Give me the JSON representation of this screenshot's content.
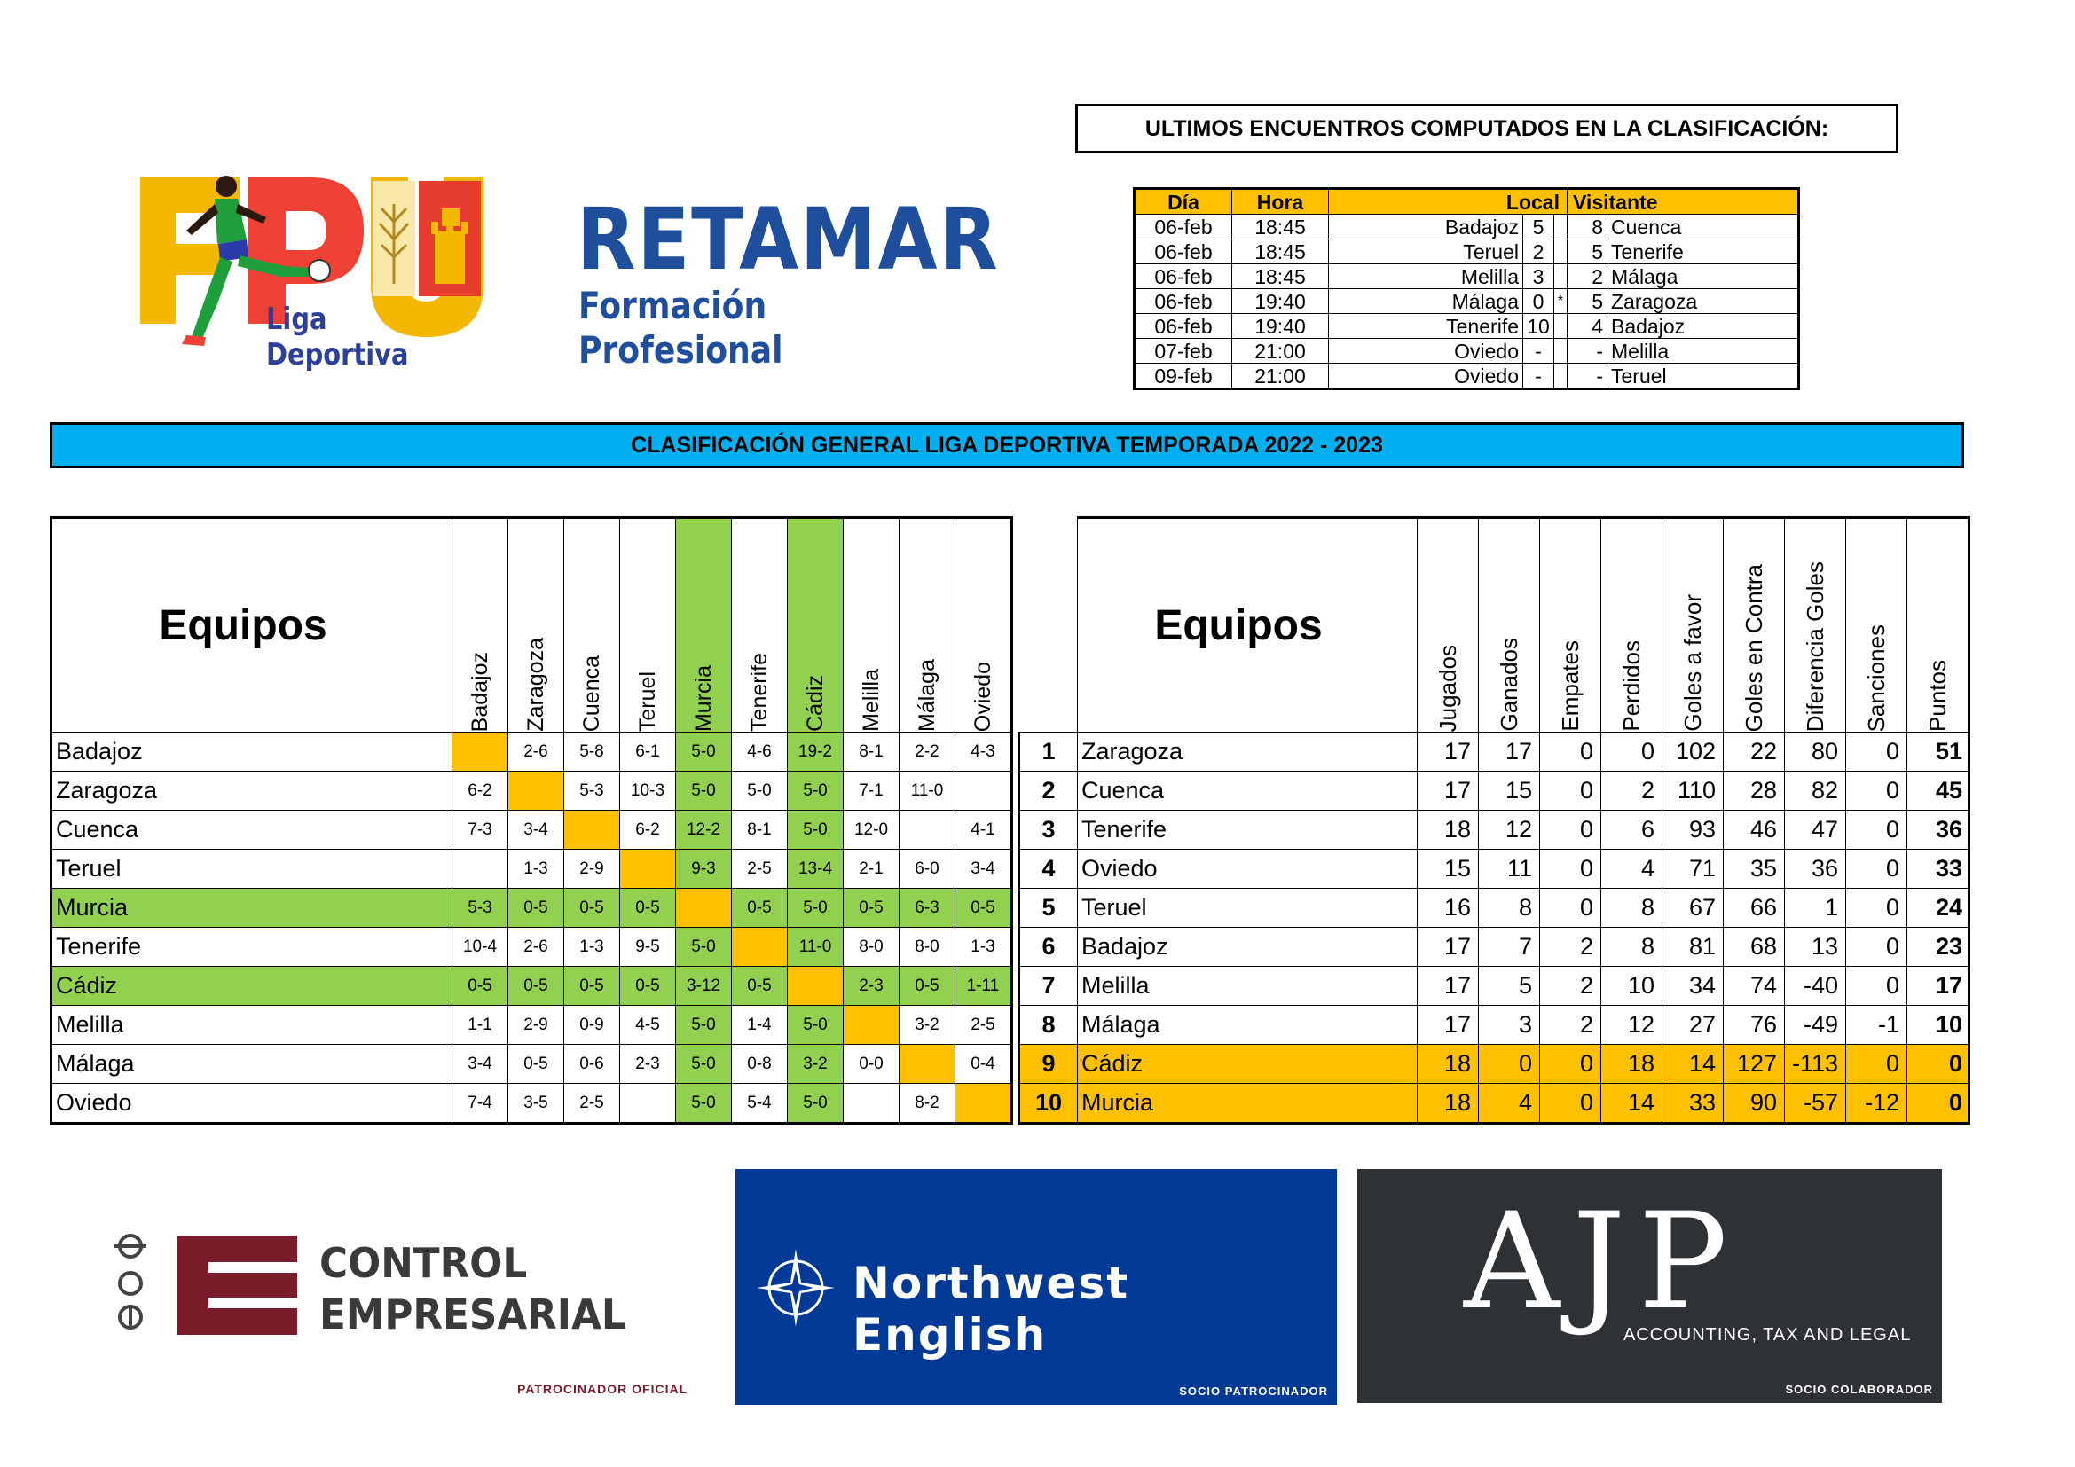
{
  "logos": {
    "fpu_letters": "FPU",
    "fpu_caption": "Liga Deportiva",
    "retamar_title": "RETAMAR",
    "retamar_subtitle": "Formación Profesional"
  },
  "ultimos": {
    "title": "ULTIMOS ENCUENTROS COMPUTADOS EN LA CLASIFICACIÓN:",
    "headers": {
      "dia": "Día",
      "hora": "Hora",
      "local": "Local",
      "visitante": "Visitante"
    },
    "rows": [
      {
        "dia": "06-feb",
        "hora": "18:45",
        "local": "Badajoz",
        "gl": "5",
        "mark": "",
        "gv": "8",
        "visitante": "Cuenca"
      },
      {
        "dia": "06-feb",
        "hora": "18:45",
        "local": "Teruel",
        "gl": "2",
        "mark": "",
        "gv": "5",
        "visitante": "Tenerife"
      },
      {
        "dia": "06-feb",
        "hora": "18:45",
        "local": "Melilla",
        "gl": "3",
        "mark": "",
        "gv": "2",
        "visitante": "Málaga"
      },
      {
        "dia": "06-feb",
        "hora": "19:40",
        "local": "Málaga",
        "gl": "0",
        "mark": "*",
        "gv": "5",
        "visitante": "Zaragoza"
      },
      {
        "dia": "06-feb",
        "hora": "19:40",
        "local": "Tenerife",
        "gl": "10",
        "mark": "",
        "gv": "4",
        "visitante": "Badajoz"
      },
      {
        "dia": "07-feb",
        "hora": "21:00",
        "local": "Oviedo",
        "gl": "-",
        "mark": "",
        "gv": "-",
        "visitante": "Melilla"
      },
      {
        "dia": "09-feb",
        "hora": "21:00",
        "local": "Oviedo",
        "gl": "-",
        "mark": "",
        "gv": "-",
        "visitante": "Teruel"
      }
    ]
  },
  "banner": "CLASIFICACIÓN GENERAL LIGA DEPORTIVA TEMPORADA 2022 - 2023",
  "matrix": {
    "header": "Equipos",
    "teams": [
      "Badajoz",
      "Zaragoza",
      "Cuenca",
      "Teruel",
      "Murcia",
      "Tenerife",
      "Cádiz",
      "Melilla",
      "Málaga",
      "Oviedo"
    ],
    "green_teams": [
      "Murcia",
      "Cádiz"
    ],
    "orange_color": "#ffc000",
    "green_color": "#92d050",
    "results": [
      [
        "",
        "2-6",
        "5-8",
        "6-1",
        "5-0",
        "4-6",
        "19-2",
        "8-1",
        "2-2",
        "4-3"
      ],
      [
        "6-2",
        "",
        "5-3",
        "10-3",
        "5-0",
        "5-0",
        "5-0",
        "7-1",
        "11-0",
        ""
      ],
      [
        "7-3",
        "3-4",
        "",
        "6-2",
        "12-2",
        "8-1",
        "5-0",
        "12-0",
        "",
        "4-1"
      ],
      [
        "",
        "1-3",
        "2-9",
        "",
        "9-3",
        "2-5",
        "13-4",
        "2-1",
        "6-0",
        "3-4"
      ],
      [
        "5-3",
        "0-5",
        "0-5",
        "0-5",
        "",
        "0-5",
        "5-0",
        "0-5",
        "6-3",
        "0-5"
      ],
      [
        "10-4",
        "2-6",
        "1-3",
        "9-5",
        "5-0",
        "",
        "11-0",
        "8-0",
        "8-0",
        "1-3"
      ],
      [
        "0-5",
        "0-5",
        "0-5",
        "0-5",
        "3-12",
        "0-5",
        "",
        "2-3",
        "0-5",
        "1-11"
      ],
      [
        "1-1",
        "2-9",
        "0-9",
        "4-5",
        "5-0",
        "1-4",
        "5-0",
        "",
        "3-2",
        "2-5"
      ],
      [
        "3-4",
        "0-5",
        "0-6",
        "2-3",
        "5-0",
        "0-8",
        "3-2",
        "0-0",
        "",
        "0-4"
      ],
      [
        "7-4",
        "3-5",
        "2-5",
        "",
        "5-0",
        "5-4",
        "5-0",
        "",
        "8-2",
        ""
      ]
    ]
  },
  "standings": {
    "header": "Equipos",
    "columns": [
      "Jugados",
      "Ganados",
      "Empates",
      "Perdidos",
      "Goles a favor",
      "Goles en Contra",
      "Diferencia Goles",
      "Sanciones",
      "Puntos"
    ],
    "rows": [
      {
        "pos": "1",
        "team": "Zaragoza",
        "stats": [
          "17",
          "17",
          "0",
          "0",
          "102",
          "22",
          "80",
          "0",
          "51"
        ],
        "highlight": false
      },
      {
        "pos": "2",
        "team": "Cuenca",
        "stats": [
          "17",
          "15",
          "0",
          "2",
          "110",
          "28",
          "82",
          "0",
          "45"
        ],
        "highlight": false
      },
      {
        "pos": "3",
        "team": "Tenerife",
        "stats": [
          "18",
          "12",
          "0",
          "6",
          "93",
          "46",
          "47",
          "0",
          "36"
        ],
        "highlight": false
      },
      {
        "pos": "4",
        "team": "Oviedo",
        "stats": [
          "15",
          "11",
          "0",
          "4",
          "71",
          "35",
          "36",
          "0",
          "33"
        ],
        "highlight": false
      },
      {
        "pos": "5",
        "team": "Teruel",
        "stats": [
          "16",
          "8",
          "0",
          "8",
          "67",
          "66",
          "1",
          "0",
          "24"
        ],
        "highlight": false
      },
      {
        "pos": "6",
        "team": "Badajoz",
        "stats": [
          "17",
          "7",
          "2",
          "8",
          "81",
          "68",
          "13",
          "0",
          "23"
        ],
        "highlight": false
      },
      {
        "pos": "7",
        "team": "Melilla",
        "stats": [
          "17",
          "5",
          "2",
          "10",
          "34",
          "74",
          "-40",
          "0",
          "17"
        ],
        "highlight": false
      },
      {
        "pos": "8",
        "team": "Málaga",
        "stats": [
          "17",
          "3",
          "2",
          "12",
          "27",
          "76",
          "-49",
          "-1",
          "10"
        ],
        "highlight": false
      },
      {
        "pos": "9",
        "team": "Cádiz",
        "stats": [
          "18",
          "0",
          "0",
          "18",
          "14",
          "127",
          "-113",
          "0",
          "0"
        ],
        "highlight": true
      },
      {
        "pos": "10",
        "team": "Murcia",
        "stats": [
          "18",
          "4",
          "0",
          "14",
          "33",
          "90",
          "-57",
          "-12",
          "0"
        ],
        "highlight": true
      }
    ]
  },
  "sponsors": {
    "control": {
      "line1": "CONTROL",
      "line2": "EMPRESARIAL",
      "tag": "PATROCINADOR OFICIAL",
      "color": "#7a1b2a"
    },
    "northwest": {
      "name": "Northwest English",
      "tag": "SOCIO PATROCINADOR",
      "color": "#003a96"
    },
    "ajp": {
      "name": "AJP",
      "sub": "ACCOUNTING, TAX AND LEGAL",
      "tag": "SOCIO COLABORADOR",
      "color": "#2f3235"
    }
  }
}
